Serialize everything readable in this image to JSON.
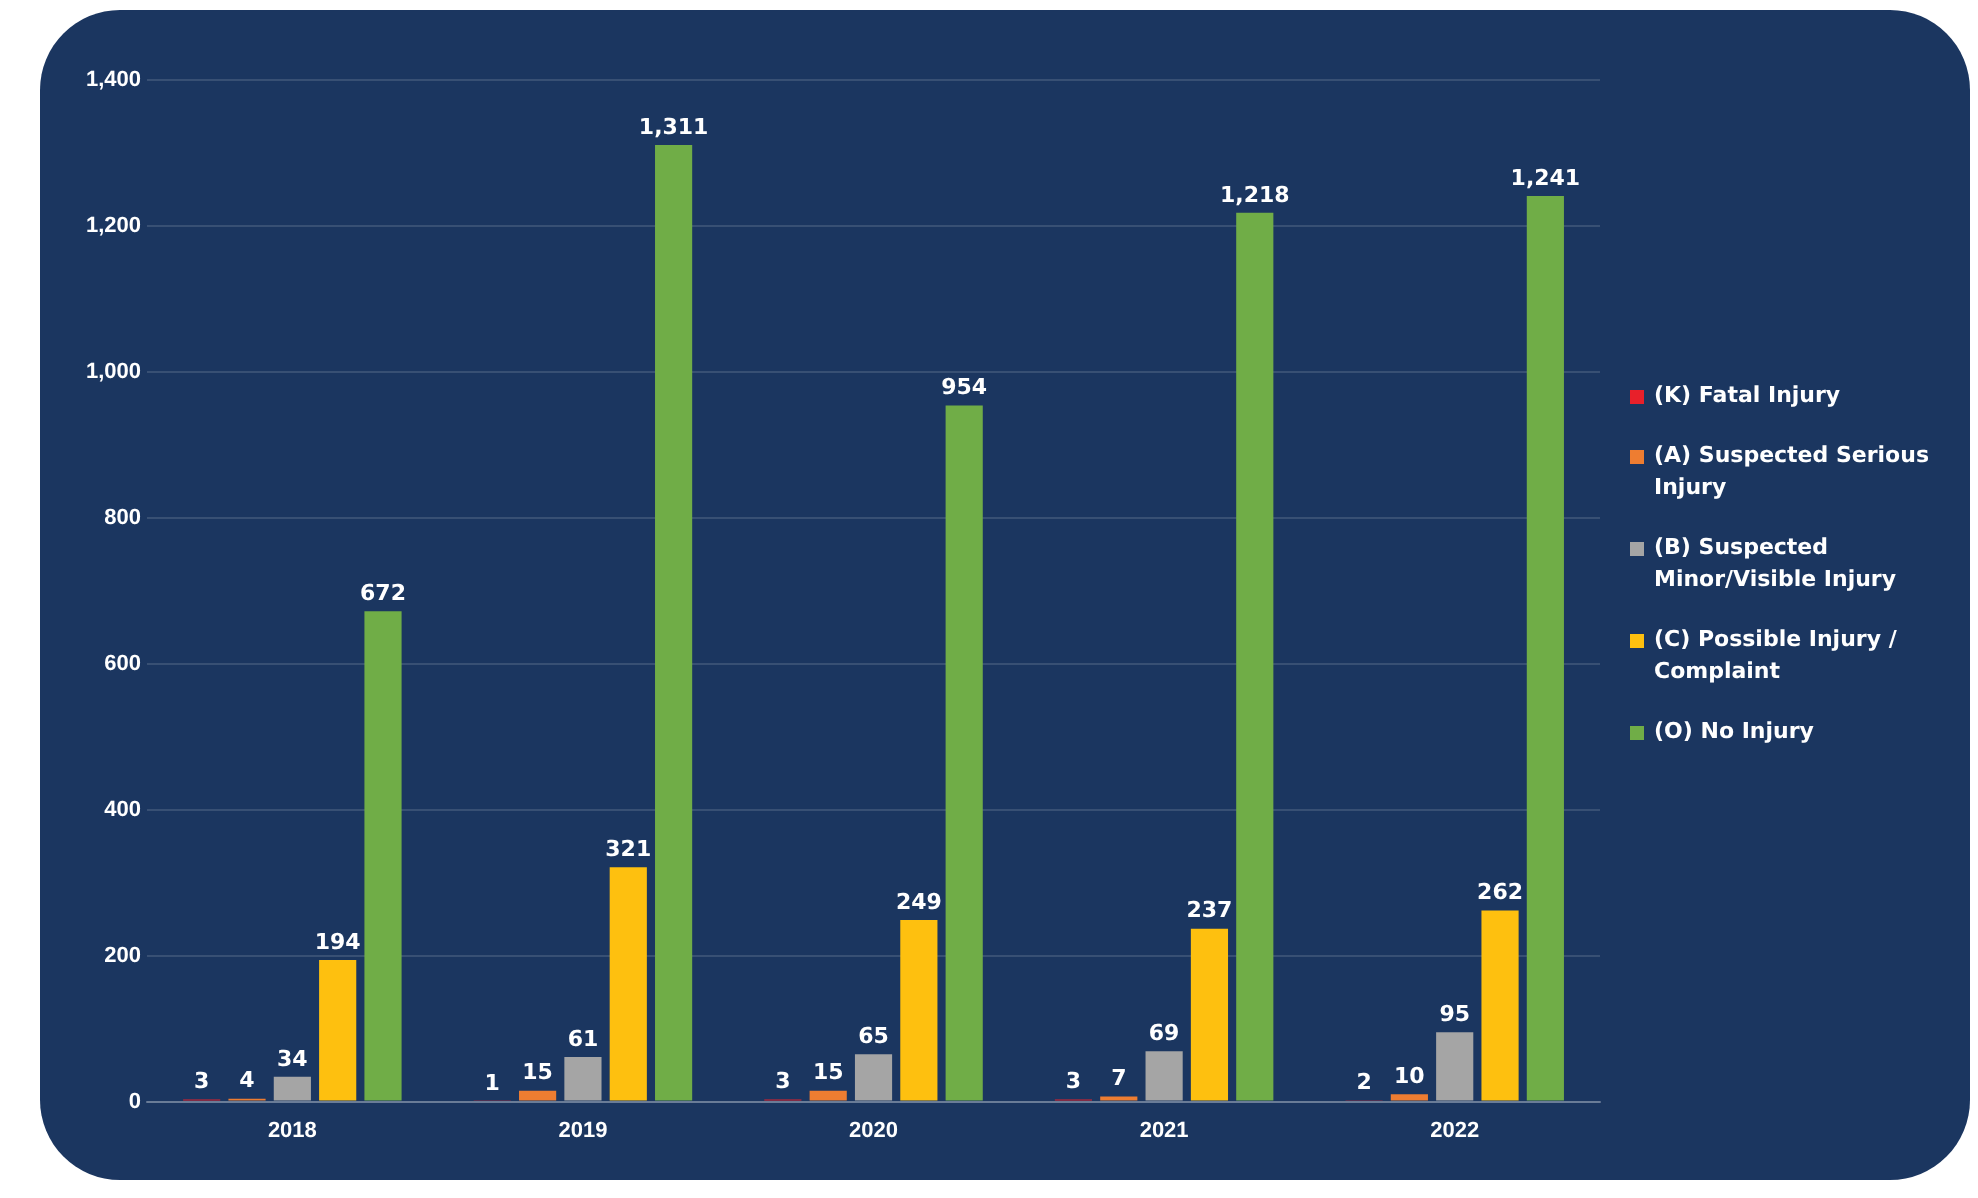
{
  "chart_data": {
    "type": "bar",
    "categories": [
      "2018",
      "2019",
      "2020",
      "2021",
      "2022"
    ],
    "series": [
      {
        "name": "(K) Fatal Injury",
        "color": "#e8202a",
        "values": [
          3,
          1,
          3,
          3,
          2
        ],
        "value_labels": [
          "3",
          "1",
          "3",
          "3",
          "2"
        ]
      },
      {
        "name": "(A) Suspected Serious Injury",
        "color": "#ee7d31",
        "values": [
          4,
          15,
          15,
          7,
          10
        ],
        "value_labels": [
          "4",
          "15",
          "15",
          "7",
          "10"
        ]
      },
      {
        "name": "(B) Suspected Minor/Visible Injury",
        "color": "#a5a5a5",
        "values": [
          34,
          61,
          65,
          69,
          95
        ],
        "value_labels": [
          "34",
          "61",
          "65",
          "69",
          "95"
        ]
      },
      {
        "name": "(C) Possible Injury / Complaint",
        "color": "#fec00f",
        "values": [
          194,
          321,
          249,
          237,
          262
        ],
        "value_labels": [
          "194",
          "321",
          "249",
          "237",
          "262"
        ]
      },
      {
        "name": "(O) No Injury",
        "color": "#70ad47",
        "values": [
          672,
          1311,
          954,
          1218,
          1241
        ],
        "value_labels": [
          "672",
          "1,311",
          "954",
          "1,218",
          "1,241"
        ]
      }
    ],
    "ylim": [
      0,
      1400
    ],
    "yticks": [
      0,
      200,
      400,
      600,
      800,
      {
        "value": 1000,
        "label": "1,000"
      },
      {
        "value": 1200,
        "label": "1,200"
      },
      {
        "value": 1400,
        "label": "1,400"
      }
    ],
    "grid": "y",
    "legend": "right"
  }
}
